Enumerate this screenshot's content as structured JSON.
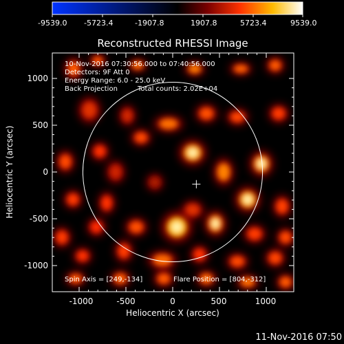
{
  "colorbar": {
    "ticks": [
      "-9539.0",
      "-5723.4",
      "-1907.8",
      "1907.8",
      "5723.4",
      "9539.0"
    ],
    "min": -9539.0,
    "max": 9539.0
  },
  "title": "Reconstructed RHESSI Image",
  "info": {
    "line1": "10-Nov-2016 07:30:56.000 to 07:40:56.000",
    "line2": "Detectors: 9F  Att 0",
    "line3": "Energy Range: 6.0 - 25.0 keV",
    "line4_left": "Back Projection",
    "line4_right": "Total counts: 2.02E+04"
  },
  "footer_info": {
    "spin_axis": "Spin Axis = [249,-134]",
    "flare_position": "Flare Position = [804,-312]"
  },
  "timestamp": "11-Nov-2016 07:50",
  "axes": {
    "xlabel": "Heliocentric X (arcsec)",
    "ylabel": "Heliocentric Y (arcsec)",
    "x_ticks": [
      "-1000",
      "-500",
      "0",
      "500",
      "1000"
    ],
    "y_ticks": [
      "1000",
      "500",
      "0",
      "-500",
      "-1000"
    ],
    "xlim": [
      -1290,
      1290
    ],
    "ylim": [
      -1290,
      1290
    ]
  },
  "solar_limb": {
    "center": [
      0,
      0
    ],
    "radius": 960
  },
  "spin_axis_marker": [
    249,
    -134
  ],
  "colors": {
    "background": "#000000",
    "foreground": "#ffffff",
    "colormap": [
      "#0000ff",
      "#000000",
      "#ff0000",
      "#ffff00",
      "#ffffff"
    ]
  }
}
